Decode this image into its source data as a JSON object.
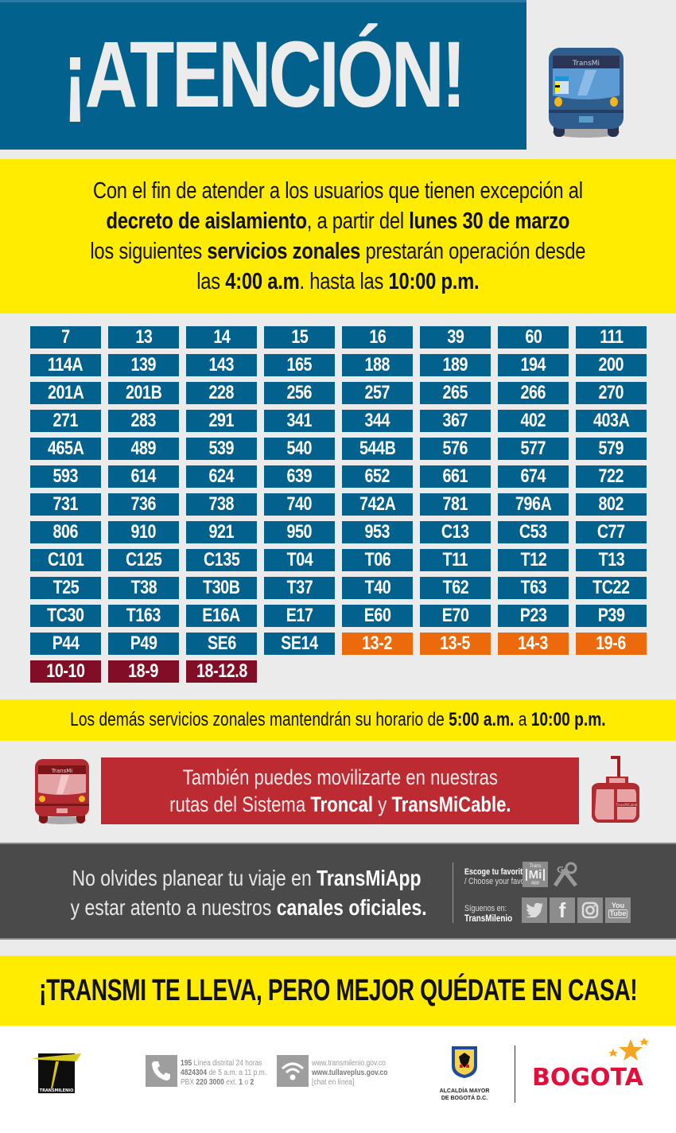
{
  "header": {
    "title": "¡ATENCIÓN!",
    "bus_label": "TransMi"
  },
  "intro": {
    "line1": "Con el fin de atender a los usuarios que tienen excepción al",
    "line2_bold1": "decreto de aislamiento",
    "line2_mid": ", a partir del ",
    "line2_bold2": "lunes 30 de marzo",
    "line3_pre": "los siguientes ",
    "line3_bold": "servicios zonales",
    "line3_post": " prestarán operación desde",
    "line4_pre": "las ",
    "line4_bold1": "4:00 a.m",
    "line4_mid": ". hasta las ",
    "line4_bold2": "10:00 p.m."
  },
  "routes": {
    "colors": {
      "blue": "#03628d",
      "orange": "#ec6a0c",
      "maroon": "#820d26"
    },
    "items": [
      {
        "label": "7",
        "color": "blue"
      },
      {
        "label": "13",
        "color": "blue"
      },
      {
        "label": "14",
        "color": "blue"
      },
      {
        "label": "15",
        "color": "blue"
      },
      {
        "label": "16",
        "color": "blue"
      },
      {
        "label": "39",
        "color": "blue"
      },
      {
        "label": "60",
        "color": "blue"
      },
      {
        "label": "111",
        "color": "blue"
      },
      {
        "label": "114A",
        "color": "blue"
      },
      {
        "label": "139",
        "color": "blue"
      },
      {
        "label": "143",
        "color": "blue"
      },
      {
        "label": "165",
        "color": "blue"
      },
      {
        "label": "188",
        "color": "blue"
      },
      {
        "label": "189",
        "color": "blue"
      },
      {
        "label": "194",
        "color": "blue"
      },
      {
        "label": "200",
        "color": "blue"
      },
      {
        "label": "201A",
        "color": "blue"
      },
      {
        "label": "201B",
        "color": "blue"
      },
      {
        "label": "228",
        "color": "blue"
      },
      {
        "label": "256",
        "color": "blue"
      },
      {
        "label": "257",
        "color": "blue"
      },
      {
        "label": "265",
        "color": "blue"
      },
      {
        "label": "266",
        "color": "blue"
      },
      {
        "label": "270",
        "color": "blue"
      },
      {
        "label": "271",
        "color": "blue"
      },
      {
        "label": "283",
        "color": "blue"
      },
      {
        "label": "291",
        "color": "blue"
      },
      {
        "label": "341",
        "color": "blue"
      },
      {
        "label": "344",
        "color": "blue"
      },
      {
        "label": "367",
        "color": "blue"
      },
      {
        "label": "402",
        "color": "blue"
      },
      {
        "label": "403A",
        "color": "blue"
      },
      {
        "label": "465A",
        "color": "blue"
      },
      {
        "label": "489",
        "color": "blue"
      },
      {
        "label": "539",
        "color": "blue"
      },
      {
        "label": "540",
        "color": "blue"
      },
      {
        "label": "544B",
        "color": "blue"
      },
      {
        "label": "576",
        "color": "blue"
      },
      {
        "label": "577",
        "color": "blue"
      },
      {
        "label": "579",
        "color": "blue"
      },
      {
        "label": "593",
        "color": "blue"
      },
      {
        "label": "614",
        "color": "blue"
      },
      {
        "label": "624",
        "color": "blue"
      },
      {
        "label": "639",
        "color": "blue"
      },
      {
        "label": "652",
        "color": "blue"
      },
      {
        "label": "661",
        "color": "blue"
      },
      {
        "label": "674",
        "color": "blue"
      },
      {
        "label": "722",
        "color": "blue"
      },
      {
        "label": "731",
        "color": "blue"
      },
      {
        "label": "736",
        "color": "blue"
      },
      {
        "label": "738",
        "color": "blue"
      },
      {
        "label": "740",
        "color": "blue"
      },
      {
        "label": "742A",
        "color": "blue"
      },
      {
        "label": "781",
        "color": "blue"
      },
      {
        "label": "796A",
        "color": "blue"
      },
      {
        "label": "802",
        "color": "blue"
      },
      {
        "label": "806",
        "color": "blue"
      },
      {
        "label": "910",
        "color": "blue"
      },
      {
        "label": "921",
        "color": "blue"
      },
      {
        "label": "950",
        "color": "blue"
      },
      {
        "label": "953",
        "color": "blue"
      },
      {
        "label": "C13",
        "color": "blue"
      },
      {
        "label": "C53",
        "color": "blue"
      },
      {
        "label": "C77",
        "color": "blue"
      },
      {
        "label": "C101",
        "color": "blue"
      },
      {
        "label": "C125",
        "color": "blue"
      },
      {
        "label": "C135",
        "color": "blue"
      },
      {
        "label": "T04",
        "color": "blue"
      },
      {
        "label": "T06",
        "color": "blue"
      },
      {
        "label": "T11",
        "color": "blue"
      },
      {
        "label": "T12",
        "color": "blue"
      },
      {
        "label": "T13",
        "color": "blue"
      },
      {
        "label": "T25",
        "color": "blue"
      },
      {
        "label": "T38",
        "color": "blue"
      },
      {
        "label": "T30B",
        "color": "blue"
      },
      {
        "label": "T37",
        "color": "blue"
      },
      {
        "label": "T40",
        "color": "blue"
      },
      {
        "label": "T62",
        "color": "blue"
      },
      {
        "label": "T63",
        "color": "blue"
      },
      {
        "label": "TC22",
        "color": "blue"
      },
      {
        "label": "TC30",
        "color": "blue"
      },
      {
        "label": "T163",
        "color": "blue"
      },
      {
        "label": "E16A",
        "color": "blue"
      },
      {
        "label": "E17",
        "color": "blue"
      },
      {
        "label": "E60",
        "color": "blue"
      },
      {
        "label": "E70",
        "color": "blue"
      },
      {
        "label": "P23",
        "color": "blue"
      },
      {
        "label": "P39",
        "color": "blue"
      },
      {
        "label": "P44",
        "color": "blue"
      },
      {
        "label": "P49",
        "color": "blue"
      },
      {
        "label": "SE6",
        "color": "blue"
      },
      {
        "label": "SE14",
        "color": "blue"
      },
      {
        "label": "13-2",
        "color": "orange"
      },
      {
        "label": "13-5",
        "color": "orange"
      },
      {
        "label": "14-3",
        "color": "orange"
      },
      {
        "label": "19-6",
        "color": "orange"
      },
      {
        "label": "10-10",
        "color": "maroon"
      },
      {
        "label": "18-9",
        "color": "maroon"
      },
      {
        "label": "18-12.8",
        "color": "maroon"
      }
    ]
  },
  "other_hours": {
    "pre": "Los demás servicios zonales mantendrán su horario de ",
    "bold1": "5:00 a.m.",
    "mid": " a ",
    "bold2": "10:00 p.m."
  },
  "alt_transport": {
    "line1": "También puedes movilizarte en nuestras",
    "line2_pre": "rutas del Sistema ",
    "line2_bold1": "Troncal",
    "line2_mid": " y ",
    "line2_bold2": "TransMiCable.",
    "bus_label": "TransMi",
    "cable_label": "TransMiCable"
  },
  "app_promo": {
    "line1_pre": "No olvides planear tu viaje en ",
    "line1_bold": "TransMiApp",
    "line2_pre": "y estar atento a nuestros ",
    "line2_bold": "canales oficiales.",
    "choose_bold": "Escoge tu favorita",
    "choose_sub": "/ Choose your favorite",
    "follow_pre": "Síguenos en:",
    "follow_bold": "TransMilenio",
    "app_icon_label": "Mi",
    "app_icon_top": "Trans",
    "app_icon_bottom": "app",
    "maps_icon_label": "G",
    "youtube_top": "You",
    "youtube_bottom": "Tube"
  },
  "slogan": "¡TRANSMI TE LLEVA, PERO MEJOR QUÉDATE EN CASA!",
  "footer": {
    "logo_label": "TRANSMILENIO",
    "phone_line1_bold": "195",
    "phone_line1": " Línea distrital 24 horas",
    "phone_line2_bold": "4824304",
    "phone_line2": " de 5 a.m. a 11 p.m.",
    "phone_line3_pre": "PBX ",
    "phone_line3_bold": "220 3000",
    "phone_line3_mid": " ext. ",
    "phone_line3_b2": "1",
    "phone_line3_o": " o ",
    "phone_line3_b3": "2",
    "web_line1": "www.transmilenio.gov.co",
    "web_line2": "www.tullaveplus.gov.co",
    "web_line3": "[chat en línea]",
    "alcaldia_line1": "ALCALDÍA MAYOR",
    "alcaldia_line2": "DE BOGOTÁ D.C.",
    "bogota_logo": "BOGOTA"
  }
}
